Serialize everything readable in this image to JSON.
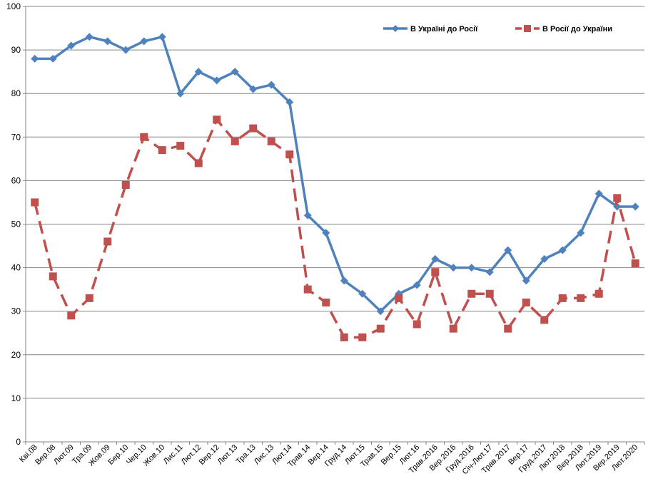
{
  "chart_data": {
    "type": "line",
    "title": "",
    "xlabel": "",
    "ylabel": "",
    "ylim": [
      0,
      100
    ],
    "y_ticks": [
      0,
      10,
      20,
      30,
      40,
      50,
      60,
      70,
      80,
      90,
      100
    ],
    "grid": true,
    "legend_position": "top-right",
    "categories": [
      "Кві.08",
      "Вер.08",
      "Лют.09",
      "Тра.09",
      "Жов.09",
      "Бер.10",
      "Чер.10",
      "Жов.10",
      "Лис.11",
      "Лют.12",
      "Вер.12",
      "Лют.13",
      "Тра.13",
      "Лис.13",
      "Лют.14",
      "Трав.14",
      "Вер.14",
      "Груд.14",
      "Лют.15",
      "Трав.15",
      "Вер.15",
      "Лют.16",
      "Трав.2016",
      "Вер.2016",
      "Груд.2016",
      "Січ-Лют.17",
      "Трав.2017",
      "Вер.17",
      "Груд.2017",
      "Лют.2018",
      "Вер.2018",
      "Лют.2019",
      "Вер.2019",
      "Лют.2020"
    ],
    "series": [
      {
        "name": "В Україні  до Росії",
        "color": "#4F81BD",
        "marker": "diamond",
        "line_style": "solid",
        "values": [
          88,
          88,
          91,
          93,
          92,
          90,
          92,
          93,
          80,
          85,
          83,
          85,
          81,
          82,
          78,
          52,
          48,
          37,
          34,
          30,
          34,
          36,
          42,
          40,
          40,
          39,
          44,
          37,
          42,
          44,
          48,
          57,
          54,
          54
        ]
      },
      {
        "name": "В Росії до України",
        "color": "#C0504D",
        "marker": "square",
        "line_style": "dashed",
        "values": [
          55,
          38,
          29,
          33,
          46,
          59,
          70,
          67,
          68,
          64,
          74,
          69,
          72,
          69,
          66,
          35,
          32,
          24,
          24,
          26,
          33,
          27,
          39,
          26,
          34,
          34,
          26,
          32,
          28,
          33,
          33,
          34,
          56,
          41
        ]
      }
    ]
  }
}
